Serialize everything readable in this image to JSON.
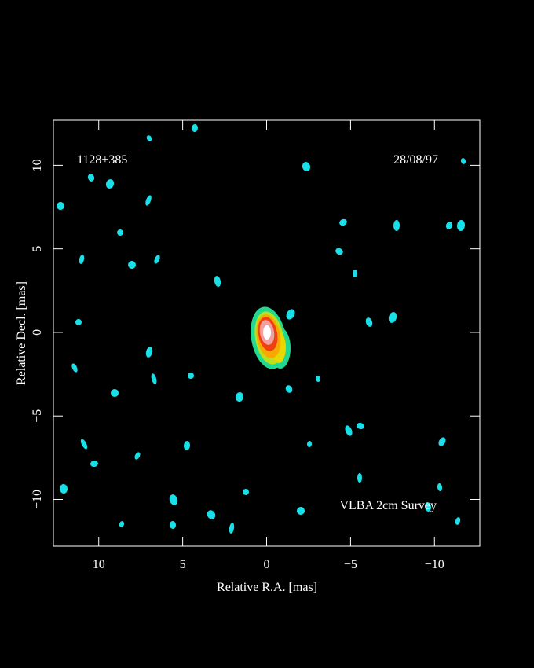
{
  "chart_data": {
    "type": "image",
    "source": "1128+385",
    "date": "28/08/97",
    "survey": "VLBA 2cm Survey",
    "xlabel": "Relative R.A. [mas]",
    "ylabel": "Relative Decl. [mas]",
    "xlim": [
      12.7,
      -12.7
    ],
    "ylim": [
      -12.8,
      12.7
    ],
    "xticks": [
      10,
      5,
      0,
      {
        "value": -5,
        "label": "−5"
      },
      {
        "value": -10,
        "label": "−10"
      }
    ],
    "yticks": [
      {
        "value": -10,
        "label": "−10"
      },
      {
        "value": -5,
        "label": "−5"
      },
      0,
      5,
      10
    ]
  }
}
